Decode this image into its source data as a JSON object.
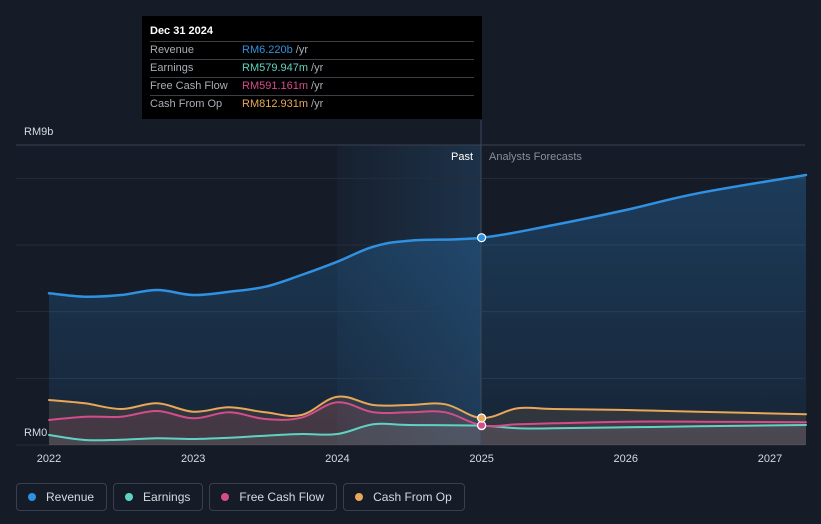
{
  "chart_data": {
    "type": "line",
    "y_axis": {
      "min_label": "RM0",
      "max_label": "RM9b",
      "ylim": [
        0,
        9
      ]
    },
    "x_ticks": [
      "2022",
      "2023",
      "2024",
      "2025",
      "2026",
      "2027"
    ],
    "regions": {
      "past_label": "Past",
      "forecast_label": "Analysts Forecasts"
    },
    "divider_x": 2025.0,
    "series": [
      {
        "name": "Revenue",
        "color": "#2f91e0",
        "points": [
          [
            2022.0,
            4.55
          ],
          [
            2022.25,
            4.45
          ],
          [
            2022.5,
            4.5
          ],
          [
            2022.75,
            4.65
          ],
          [
            2023.0,
            4.5
          ],
          [
            2023.25,
            4.6
          ],
          [
            2023.5,
            4.75
          ],
          [
            2023.75,
            5.1
          ],
          [
            2024.0,
            5.5
          ],
          [
            2024.25,
            5.95
          ],
          [
            2024.5,
            6.13
          ],
          [
            2025.0,
            6.22
          ],
          [
            2025.5,
            6.6
          ],
          [
            2026.0,
            7.05
          ],
          [
            2026.5,
            7.55
          ],
          [
            2027.25,
            8.1
          ]
        ]
      },
      {
        "name": "Earnings",
        "color": "#5fd3c3",
        "points": [
          [
            2022.0,
            0.3
          ],
          [
            2022.25,
            0.15
          ],
          [
            2022.5,
            0.16
          ],
          [
            2022.75,
            0.2
          ],
          [
            2023.0,
            0.18
          ],
          [
            2023.25,
            0.22
          ],
          [
            2023.5,
            0.28
          ],
          [
            2023.75,
            0.33
          ],
          [
            2024.0,
            0.33
          ],
          [
            2024.25,
            0.62
          ],
          [
            2024.5,
            0.6
          ],
          [
            2025.0,
            0.58
          ],
          [
            2025.25,
            0.5
          ],
          [
            2025.5,
            0.5
          ],
          [
            2026.0,
            0.53
          ],
          [
            2026.5,
            0.56
          ],
          [
            2027.25,
            0.6
          ]
        ]
      },
      {
        "name": "Free Cash Flow",
        "color": "#d44d8a",
        "points": [
          [
            2022.0,
            0.75
          ],
          [
            2022.25,
            0.85
          ],
          [
            2022.5,
            0.85
          ],
          [
            2022.75,
            1.02
          ],
          [
            2023.0,
            0.8
          ],
          [
            2023.25,
            0.98
          ],
          [
            2023.5,
            0.78
          ],
          [
            2023.75,
            0.82
          ],
          [
            2024.0,
            1.28
          ],
          [
            2024.25,
            0.98
          ],
          [
            2024.5,
            0.98
          ],
          [
            2024.75,
            0.98
          ],
          [
            2025.0,
            0.59
          ],
          [
            2025.25,
            0.62
          ],
          [
            2025.5,
            0.65
          ],
          [
            2026.0,
            0.7
          ],
          [
            2026.5,
            0.7
          ],
          [
            2027.25,
            0.68
          ]
        ]
      },
      {
        "name": "Cash From Op",
        "color": "#e8a75a",
        "points": [
          [
            2022.0,
            1.35
          ],
          [
            2022.25,
            1.25
          ],
          [
            2022.5,
            1.08
          ],
          [
            2022.75,
            1.25
          ],
          [
            2023.0,
            1.0
          ],
          [
            2023.25,
            1.13
          ],
          [
            2023.5,
            0.98
          ],
          [
            2023.75,
            0.9
          ],
          [
            2024.0,
            1.45
          ],
          [
            2024.25,
            1.2
          ],
          [
            2024.5,
            1.2
          ],
          [
            2024.75,
            1.22
          ],
          [
            2025.0,
            0.81
          ],
          [
            2025.25,
            1.1
          ],
          [
            2025.5,
            1.08
          ],
          [
            2026.0,
            1.05
          ],
          [
            2026.5,
            1.0
          ],
          [
            2027.25,
            0.92
          ]
        ]
      }
    ]
  },
  "tooltip": {
    "date": "Dec 31 2024",
    "rows": [
      {
        "label": "Revenue",
        "value": "RM6.220b",
        "unit": "/yr",
        "color": "#2f91e0"
      },
      {
        "label": "Earnings",
        "value": "RM579.947m",
        "unit": "/yr",
        "color": "#5fd3c3"
      },
      {
        "label": "Free Cash Flow",
        "value": "RM591.161m",
        "unit": "/yr",
        "color": "#d44d8a"
      },
      {
        "label": "Cash From Op",
        "value": "RM812.931m",
        "unit": "/yr",
        "color": "#e8a75a"
      }
    ]
  },
  "legend": [
    {
      "label": "Revenue",
      "color": "#2f91e0"
    },
    {
      "label": "Earnings",
      "color": "#5fd3c3"
    },
    {
      "label": "Free Cash Flow",
      "color": "#d44d8a"
    },
    {
      "label": "Cash From Op",
      "color": "#e8a75a"
    }
  ]
}
